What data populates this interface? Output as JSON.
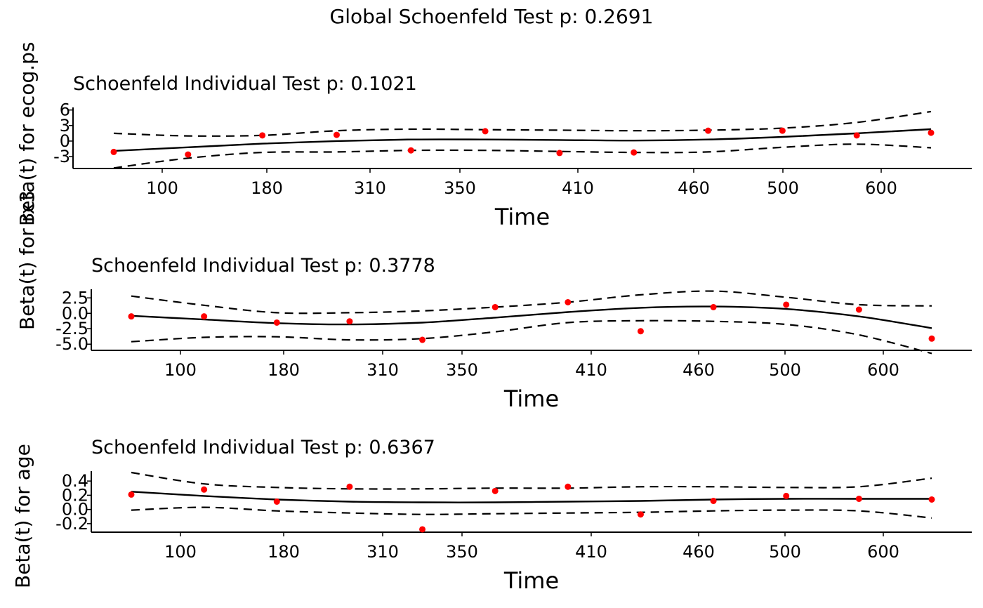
{
  "chart_data": {
    "type": "scatter",
    "title": "Global Schoenfeld Test p: 0.2691",
    "colors": {
      "points": "#ff0000",
      "lines": "#000000",
      "background": "#ffffff"
    },
    "grid": false,
    "panels": [
      {
        "title": "Schoenfeld Individual Test p: 0.1021",
        "xlabel": "Time",
        "ylabel": "Beta(t) for rx3",
        "ylabel_overlap": "Beta(t) for ecog.ps",
        "x_ticks": [
          "100",
          "180",
          "310",
          "350",
          "410",
          "460",
          "500",
          "600"
        ],
        "y_ticks": [
          6,
          3,
          0,
          -3
        ],
        "y_tick_labels": [
          "6",
          "3",
          "0",
          "-3"
        ],
        "ylim": [
          -5.3,
          6.5
        ],
        "xlim": [
          0.5,
          12.5
        ],
        "points": {
          "x": [
            1,
            2,
            3,
            4,
            5,
            6,
            7,
            8,
            9,
            10,
            11,
            12
          ],
          "y": [
            -2.1,
            -2.6,
            1.1,
            1.2,
            -1.8,
            1.9,
            -2.3,
            -2.2,
            2.0,
            2.0,
            1.1,
            1.6
          ]
        },
        "fit": {
          "x": [
            1,
            2,
            3,
            4,
            5,
            6,
            7,
            8,
            9,
            10,
            11,
            12
          ],
          "y": [
            -1.9,
            -1.2,
            -0.5,
            0.0,
            0.3,
            0.3,
            0.2,
            0.1,
            0.3,
            0.8,
            1.5,
            2.3
          ]
        },
        "upper": {
          "x": [
            1,
            2,
            3,
            4,
            5,
            6,
            7,
            8,
            9,
            10,
            11,
            12
          ],
          "y": [
            1.5,
            1.0,
            1.1,
            2.0,
            2.3,
            2.2,
            2.1,
            2.0,
            2.1,
            2.5,
            3.6,
            5.7
          ]
        },
        "lower": {
          "x": [
            1,
            2,
            3,
            4,
            5,
            6,
            7,
            8,
            9,
            10,
            11,
            12
          ],
          "y": [
            -5.2,
            -3.3,
            -2.2,
            -2.1,
            -1.8,
            -1.8,
            -2.0,
            -2.2,
            -2.1,
            -1.2,
            -0.6,
            -1.3
          ]
        }
      },
      {
        "title": "Schoenfeld Individual Test p: 0.3778",
        "xlabel": "Time",
        "ylabel": "",
        "x_ticks": [
          "100",
          "180",
          "310",
          "350",
          "410",
          "460",
          "500",
          "600"
        ],
        "y_ticks": [
          2.5,
          0.0,
          -2.5,
          -5.0
        ],
        "y_tick_labels": [
          "2.5",
          "0.0",
          "-2.5",
          "-5.0"
        ],
        "ylim": [
          -6.0,
          3.9
        ],
        "xlim": [
          0.5,
          12.5
        ],
        "points": {
          "x": [
            1,
            2,
            3,
            4,
            5,
            6,
            7,
            8,
            9,
            10,
            11,
            12
          ],
          "y": [
            -0.5,
            -0.5,
            -1.5,
            -1.3,
            -4.3,
            1.0,
            1.8,
            -2.9,
            1.0,
            1.4,
            0.6,
            -4.1
          ]
        },
        "fit": {
          "x": [
            1,
            2,
            3,
            4,
            5,
            6,
            7,
            8,
            9,
            10,
            11,
            12
          ],
          "y": [
            -0.4,
            -1.0,
            -1.6,
            -1.8,
            -1.5,
            -0.7,
            0.2,
            0.9,
            1.1,
            0.7,
            -0.5,
            -2.4
          ]
        },
        "upper": {
          "x": [
            1,
            2,
            3,
            4,
            5,
            6,
            7,
            8,
            9,
            10,
            11,
            12
          ],
          "y": [
            2.8,
            1.3,
            0.1,
            0.1,
            0.4,
            1.0,
            1.8,
            3.0,
            3.6,
            2.6,
            1.4,
            1.2
          ]
        },
        "lower": {
          "x": [
            1,
            2,
            3,
            4,
            5,
            6,
            7,
            8,
            9,
            10,
            11,
            12
          ],
          "y": [
            -4.6,
            -3.9,
            -3.8,
            -4.3,
            -4.1,
            -3.0,
            -1.5,
            -1.2,
            -1.3,
            -1.8,
            -3.5,
            -6.5
          ]
        }
      },
      {
        "title": "Schoenfeld Individual Test p: 0.6367",
        "xlabel": "Time",
        "ylabel": "Beta(t) for age",
        "x_ticks": [
          "100",
          "180",
          "310",
          "350",
          "410",
          "460",
          "500",
          "600"
        ],
        "y_ticks": [
          0.4,
          0.2,
          0.0,
          -0.2
        ],
        "y_tick_labels": [
          "0.4",
          "0.2",
          "0.0",
          "-0.2"
        ],
        "ylim": [
          -0.32,
          0.54
        ],
        "xlim": [
          0.5,
          12.5
        ],
        "points": {
          "x": [
            1,
            2,
            3,
            4,
            5,
            6,
            7,
            8,
            9,
            10,
            11,
            12
          ],
          "y": [
            0.21,
            0.28,
            0.11,
            0.32,
            -0.28,
            0.26,
            0.32,
            -0.07,
            0.12,
            0.19,
            0.15,
            0.14
          ]
        },
        "fit": {
          "x": [
            1,
            2,
            3,
            4,
            5,
            6,
            7,
            8,
            9,
            10,
            11,
            12
          ],
          "y": [
            0.25,
            0.19,
            0.14,
            0.11,
            0.1,
            0.1,
            0.11,
            0.12,
            0.14,
            0.15,
            0.15,
            0.15
          ]
        },
        "upper": {
          "x": [
            1,
            2,
            3,
            4,
            5,
            6,
            7,
            8,
            9,
            10,
            11,
            12
          ],
          "y": [
            0.52,
            0.36,
            0.31,
            0.29,
            0.29,
            0.3,
            0.3,
            0.32,
            0.32,
            0.31,
            0.32,
            0.44
          ]
        },
        "lower": {
          "x": [
            1,
            2,
            3,
            4,
            5,
            6,
            7,
            8,
            9,
            10,
            11,
            12
          ],
          "y": [
            -0.01,
            0.03,
            -0.02,
            -0.05,
            -0.07,
            -0.06,
            -0.05,
            -0.04,
            -0.02,
            -0.01,
            -0.02,
            -0.12
          ]
        }
      }
    ]
  }
}
